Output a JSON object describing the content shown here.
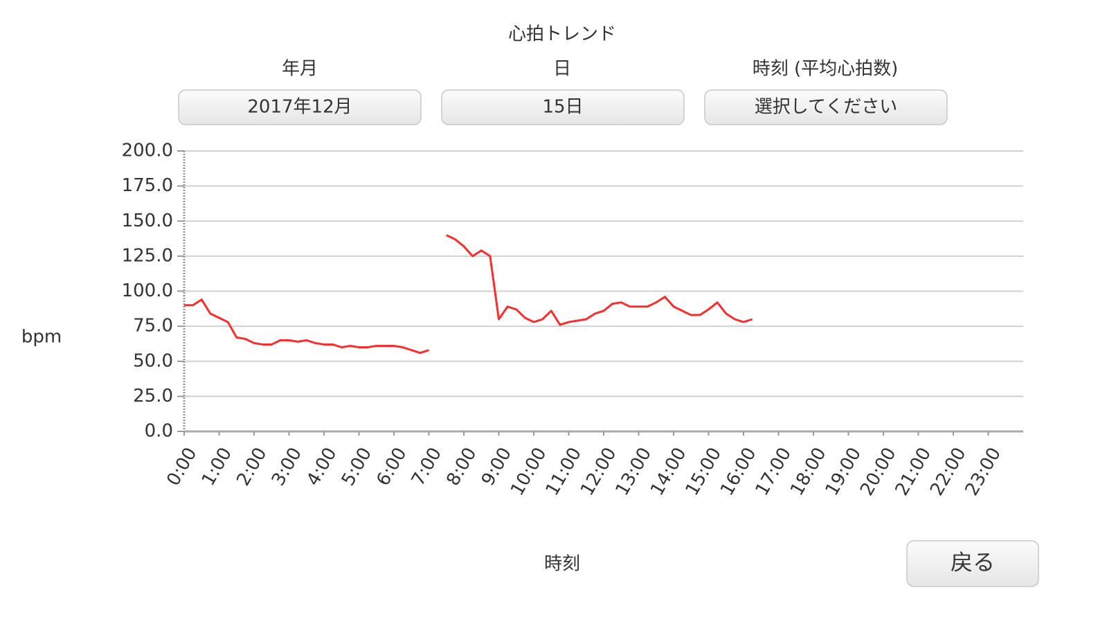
{
  "header": {
    "title": "心拍トレンド"
  },
  "selectors": [
    {
      "label": "年月",
      "value": "2017年12月"
    },
    {
      "label": "日",
      "value": "15日"
    },
    {
      "label": "時刻 (平均心拍数)",
      "value": "選択してください"
    }
  ],
  "chart_data": {
    "type": "line",
    "y_label": "bpm",
    "x_label": "時刻",
    "xlim": [
      0,
      24
    ],
    "xticks": [
      {
        "value": 0,
        "label": "0:00"
      },
      {
        "value": 1,
        "label": "1:00"
      },
      {
        "value": 2,
        "label": "2:00"
      },
      {
        "value": 3,
        "label": "3:00"
      },
      {
        "value": 4,
        "label": "4:00"
      },
      {
        "value": 5,
        "label": "5:00"
      },
      {
        "value": 6,
        "label": "6:00"
      },
      {
        "value": 7,
        "label": "7:00"
      },
      {
        "value": 8,
        "label": "8:00"
      },
      {
        "value": 9,
        "label": "9:00"
      },
      {
        "value": 10,
        "label": "10:00"
      },
      {
        "value": 11,
        "label": "11:00"
      },
      {
        "value": 12,
        "label": "12:00"
      },
      {
        "value": 13,
        "label": "13:00"
      },
      {
        "value": 14,
        "label": "14:00"
      },
      {
        "value": 15,
        "label": "15:00"
      },
      {
        "value": 16,
        "label": "16:00"
      },
      {
        "value": 17,
        "label": "17:00"
      },
      {
        "value": 18,
        "label": "18:00"
      },
      {
        "value": 19,
        "label": "19:00"
      },
      {
        "value": 20,
        "label": "20:00"
      },
      {
        "value": 21,
        "label": "21:00"
      },
      {
        "value": 22,
        "label": "22:00"
      },
      {
        "value": 23,
        "label": "23:00"
      }
    ],
    "ylim": [
      0,
      200
    ],
    "yticks": [
      {
        "value": 0,
        "label": "0.0"
      },
      {
        "value": 25,
        "label": "25.0"
      },
      {
        "value": 50,
        "label": "50.0"
      },
      {
        "value": 75,
        "label": "75.0"
      },
      {
        "value": 100,
        "label": "100.0"
      },
      {
        "value": 125,
        "label": "125.0"
      },
      {
        "value": 150,
        "label": "150.0"
      },
      {
        "value": 175,
        "label": "175.0"
      },
      {
        "value": 200,
        "label": "200.0"
      }
    ],
    "grid": true,
    "x": [
      0,
      0.25,
      0.5,
      0.75,
      1,
      1.25,
      1.5,
      1.75,
      2,
      2.25,
      2.5,
      2.75,
      3,
      3.25,
      3.5,
      3.75,
      4,
      4.25,
      4.5,
      4.75,
      5,
      5.25,
      5.5,
      5.75,
      6,
      6.25,
      6.5,
      6.75,
      7,
      7.25,
      7.5,
      7.75,
      8,
      8.25,
      8.5,
      8.75,
      9,
      9.25,
      9.5,
      9.75,
      10,
      10.25,
      10.5,
      10.75,
      11,
      11.25,
      11.5,
      11.75,
      12,
      12.25,
      12.5,
      12.75,
      13,
      13.25,
      13.5,
      13.75,
      14,
      14.25,
      14.5,
      14.75,
      15,
      15.25,
      15.5,
      15.75,
      16,
      16.25
    ],
    "series": [
      {
        "name": "bpm",
        "color": "#ff2a2a",
        "values": [
          90,
          90,
          94,
          84,
          81,
          78,
          67,
          66,
          63,
          62,
          62,
          65,
          65,
          64,
          65,
          63,
          62,
          62,
          60,
          61,
          60,
          60,
          61,
          61,
          61,
          60,
          58,
          56,
          58,
          null,
          140,
          137,
          132,
          125,
          129,
          125,
          80,
          89,
          87,
          81,
          78,
          80,
          86,
          76,
          78,
          79,
          80,
          84,
          86,
          91,
          92,
          89,
          89,
          89,
          92,
          96,
          89,
          86,
          83,
          83,
          87,
          92,
          84,
          80,
          78,
          80
        ]
      }
    ]
  },
  "back_button": "戻る"
}
